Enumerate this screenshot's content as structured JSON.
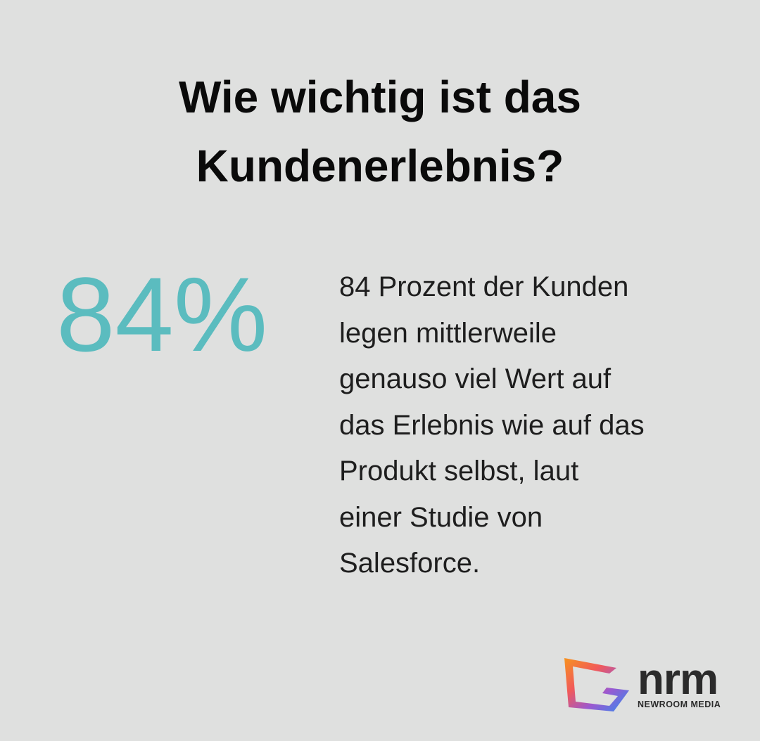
{
  "title": [
    "Wie wichtig ist das",
    "Kundenerlebnis?"
  ],
  "stat": "84%",
  "description": [
    "84 Prozent der Kunden",
    "legen mittlerweile",
    "genauso viel Wert auf",
    "das Erlebnis wie auf das",
    "Produkt selbst, laut",
    "einer Studie von",
    "Salesforce."
  ],
  "logo": {
    "name": "nrm",
    "tagline": "NEWROOM MEDIA"
  }
}
